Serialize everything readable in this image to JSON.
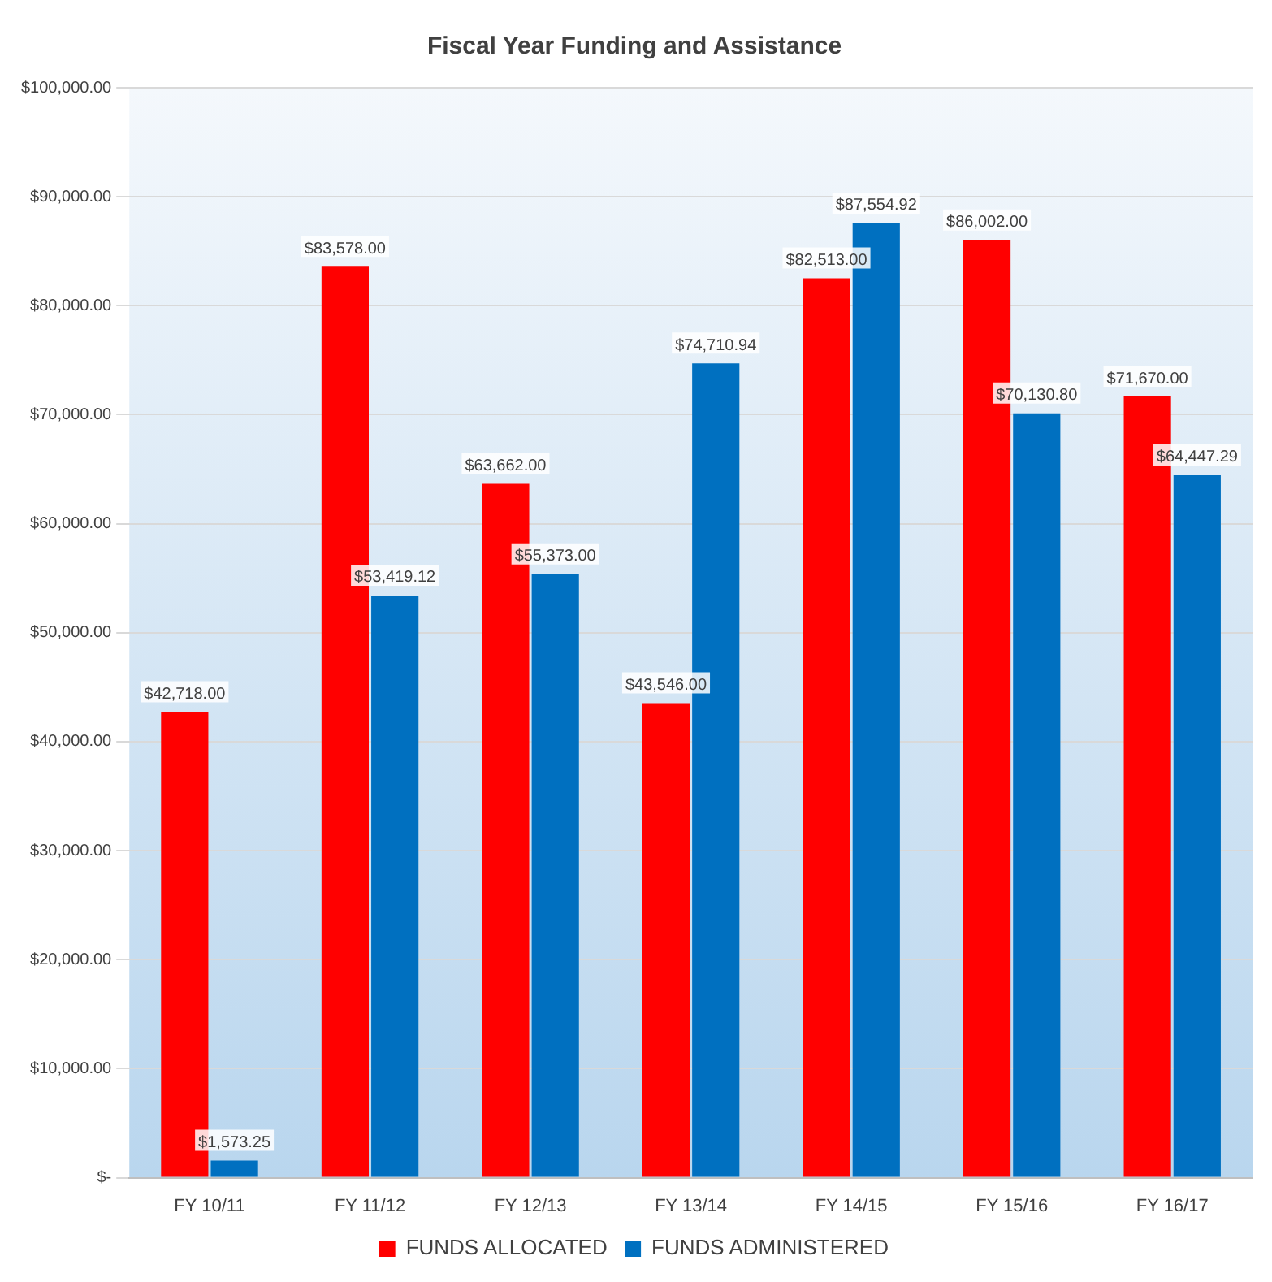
{
  "chart_data": {
    "type": "bar",
    "title": "Fiscal Year Funding and Assistance",
    "categories": [
      "FY 10/11",
      "FY 11/12",
      "FY 12/13",
      "FY 13/14",
      "FY 14/15",
      "FY 15/16",
      "FY 16/17"
    ],
    "series": [
      {
        "name": "FUNDS ALLOCATED",
        "color": "#ff0000",
        "values": [
          42718,
          83578,
          63662,
          43546,
          82513,
          86002,
          71670
        ],
        "value_labels": [
          "$42,718.00",
          "$83,578.00",
          "$63,662.00",
          "$43,546.00",
          "$82,513.00",
          "$86,002.00",
          "$71,670.00"
        ]
      },
      {
        "name": "FUNDS ADMINISTERED",
        "color": "#0070c0",
        "values": [
          1573.25,
          53419.12,
          55373,
          74710.94,
          87554.92,
          70130.8,
          64447.29
        ],
        "value_labels": [
          "$1,573.25",
          "$53,419.12",
          "$55,373.00",
          "$74,710.94",
          "$87,554.92",
          "$70,130.80",
          "$64,447.29"
        ]
      }
    ],
    "ylim": [
      0,
      100000
    ],
    "yticks": [
      {
        "value": 0,
        "label": "$-"
      },
      {
        "value": 10000,
        "label": "$10,000.00"
      },
      {
        "value": 20000,
        "label": "$20,000.00"
      },
      {
        "value": 30000,
        "label": "$30,000.00"
      },
      {
        "value": 40000,
        "label": "$40,000.00"
      },
      {
        "value": 50000,
        "label": "$50,000.00"
      },
      {
        "value": 60000,
        "label": "$60,000.00"
      },
      {
        "value": 70000,
        "label": "$70,000.00"
      },
      {
        "value": 80000,
        "label": "$80,000.00"
      },
      {
        "value": 90000,
        "label": "$90,000.00"
      },
      {
        "value": 100000,
        "label": "$100,000.00"
      }
    ],
    "grid": "y",
    "legend": "bottom"
  }
}
